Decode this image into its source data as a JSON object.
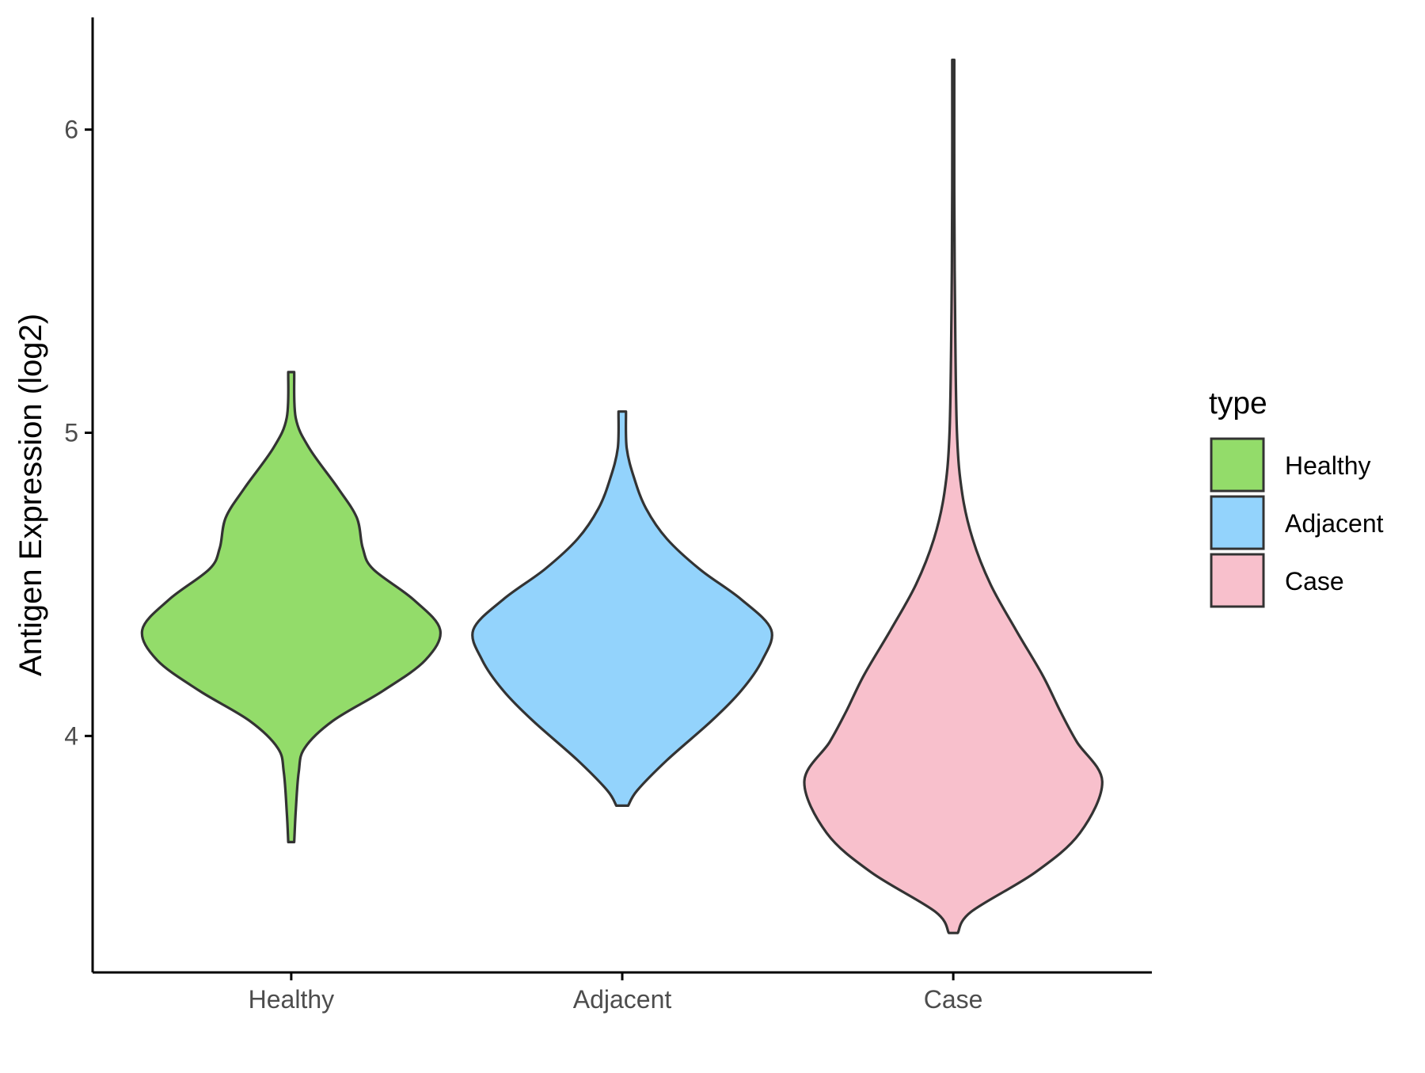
{
  "chart_data": {
    "type": "violin",
    "title": "",
    "xlabel": "",
    "ylabel": "Antigen Expression (log2)",
    "categories": [
      "Healthy",
      "Adjacent",
      "Case"
    ],
    "ylim": [
      3.22,
      6.37
    ],
    "yticks": [
      4,
      5,
      6
    ],
    "grid": false,
    "legend": {
      "title": "type",
      "position": "right",
      "entries": [
        "Healthy",
        "Adjacent",
        "Case"
      ]
    },
    "colors": {
      "Healthy": "#93DC6A",
      "Adjacent": "#93D3FC",
      "Case": "#F8C0CC",
      "outline": "#333333",
      "axis": "#000000",
      "tick_label": "#4D4D4D"
    },
    "series": [
      {
        "name": "Healthy",
        "min": 3.65,
        "max": 5.2,
        "profile": [
          {
            "y": 3.65,
            "w": 0.02
          },
          {
            "y": 3.75,
            "w": 0.03
          },
          {
            "y": 3.88,
            "w": 0.05
          },
          {
            "y": 3.96,
            "w": 0.09
          },
          {
            "y": 4.05,
            "w": 0.28
          },
          {
            "y": 4.15,
            "w": 0.62
          },
          {
            "y": 4.25,
            "w": 0.9
          },
          {
            "y": 4.35,
            "w": 1.0
          },
          {
            "y": 4.45,
            "w": 0.82
          },
          {
            "y": 4.55,
            "w": 0.55
          },
          {
            "y": 4.62,
            "w": 0.48
          },
          {
            "y": 4.72,
            "w": 0.44
          },
          {
            "y": 4.82,
            "w": 0.31
          },
          {
            "y": 4.95,
            "w": 0.12
          },
          {
            "y": 5.05,
            "w": 0.03
          },
          {
            "y": 5.2,
            "w": 0.02
          }
        ]
      },
      {
        "name": "Adjacent",
        "min": 3.77,
        "max": 5.07,
        "profile": [
          {
            "y": 3.77,
            "w": 0.04
          },
          {
            "y": 3.82,
            "w": 0.1
          },
          {
            "y": 3.92,
            "w": 0.3
          },
          {
            "y": 4.05,
            "w": 0.6
          },
          {
            "y": 4.15,
            "w": 0.8
          },
          {
            "y": 4.25,
            "w": 0.94
          },
          {
            "y": 4.35,
            "w": 1.0
          },
          {
            "y": 4.45,
            "w": 0.8
          },
          {
            "y": 4.55,
            "w": 0.52
          },
          {
            "y": 4.65,
            "w": 0.3
          },
          {
            "y": 4.75,
            "w": 0.16
          },
          {
            "y": 4.85,
            "w": 0.08
          },
          {
            "y": 4.95,
            "w": 0.03
          },
          {
            "y": 5.07,
            "w": 0.025
          }
        ]
      },
      {
        "name": "Case",
        "min": 3.35,
        "max": 6.23,
        "profile": [
          {
            "y": 3.35,
            "w": 0.03
          },
          {
            "y": 3.42,
            "w": 0.12
          },
          {
            "y": 3.55,
            "w": 0.55
          },
          {
            "y": 3.68,
            "w": 0.85
          },
          {
            "y": 3.85,
            "w": 1.0
          },
          {
            "y": 3.98,
            "w": 0.83
          },
          {
            "y": 4.08,
            "w": 0.72
          },
          {
            "y": 4.2,
            "w": 0.6
          },
          {
            "y": 4.35,
            "w": 0.42
          },
          {
            "y": 4.5,
            "w": 0.25
          },
          {
            "y": 4.65,
            "w": 0.13
          },
          {
            "y": 4.8,
            "w": 0.06
          },
          {
            "y": 5.0,
            "w": 0.025
          },
          {
            "y": 5.4,
            "w": 0.012
          },
          {
            "y": 5.8,
            "w": 0.007
          },
          {
            "y": 6.23,
            "w": 0.007
          }
        ]
      }
    ]
  }
}
